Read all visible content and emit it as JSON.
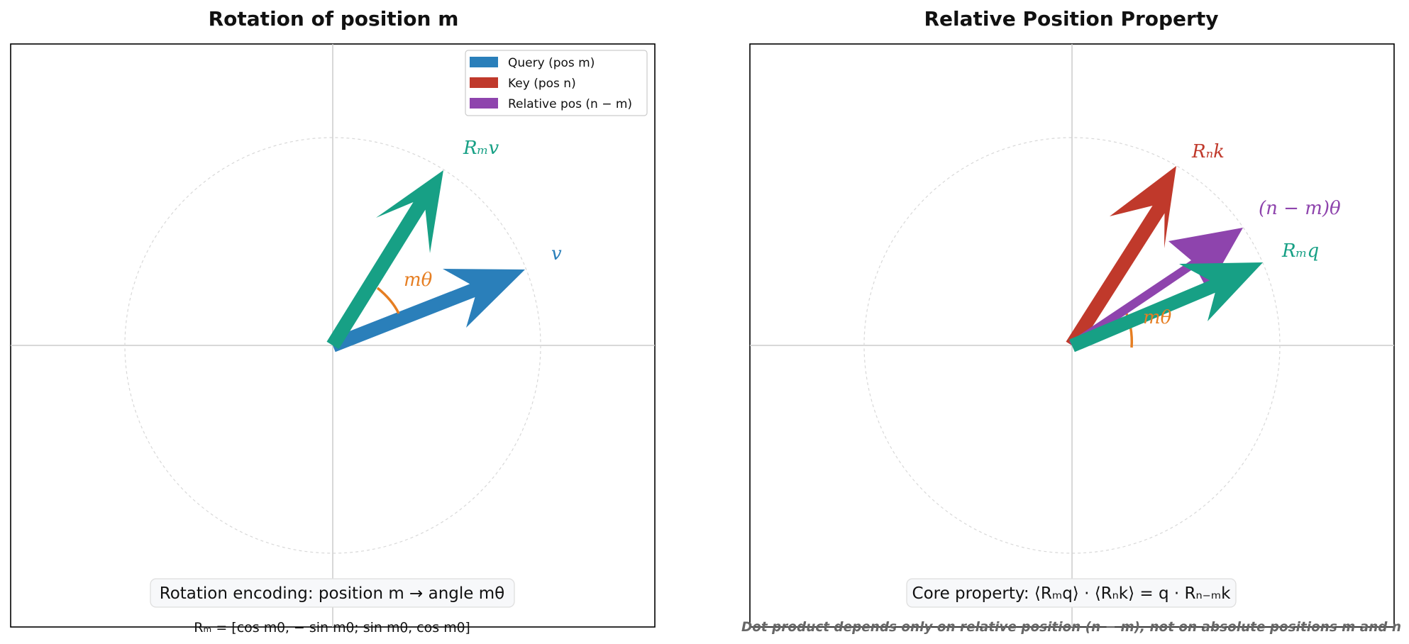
{
  "left_panel": {
    "title": "Rotation of position m",
    "label_v": "v",
    "label_rmv": "Rₘv",
    "label_angle": "mθ",
    "legend": [
      {
        "label": "Query (pos m)",
        "color": "#2a7fba"
      },
      {
        "label": "Key (pos n)",
        "color": "#c0392b"
      },
      {
        "label": "Relative pos (n − m)",
        "color": "#8e44ad"
      }
    ],
    "info_box": "Rotation encoding: position m → angle mθ",
    "formula": "Rₘ = [cos mθ,  − sin mθ; sin mθ, cos mθ]"
  },
  "right_panel": {
    "title": "Relative Position Property",
    "label_rnk": "Rₙk",
    "label_rel": "(n − m)θ",
    "label_rmq": "Rₘq",
    "label_angle": "mθ",
    "info_box": "Core property: ⟨Rₘq⟩ · ⟨Rₙk⟩ = q · Rₙ₋ₘk",
    "footnote": "Dot product depends only on relative position (n − m), not on absolute positions m and n"
  },
  "colors": {
    "query_blue": "#2a7fba",
    "rotated_teal": "#17a085",
    "key_red": "#c0392b",
    "relative_purple": "#8e44ad",
    "angle_orange": "#e67e22"
  }
}
